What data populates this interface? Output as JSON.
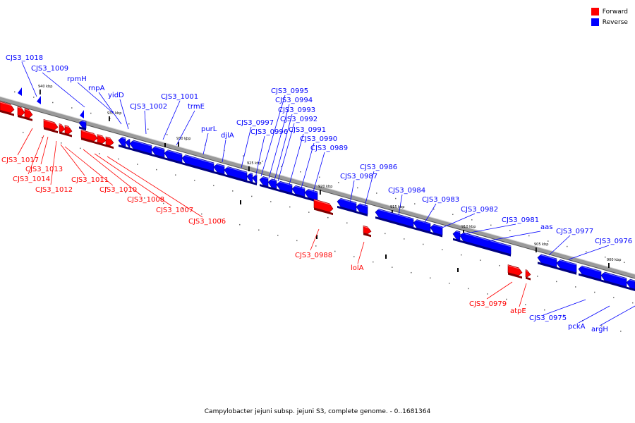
{
  "caption": "Campylobacter jejuni subsp. jejuni S3, complete genome. - 0..1681364",
  "legend": [
    {
      "label": "Forward",
      "color": "#ff0000"
    },
    {
      "label": "Reverse",
      "color": "#0000ff"
    }
  ],
  "colors": {
    "forward": "#ff0000",
    "reverse": "#0000ff",
    "backbone": "#888888"
  },
  "ticks": [
    {
      "label": "940 kbp"
    },
    {
      "label": "935 kbp"
    },
    {
      "label": "930 kbp"
    },
    {
      "label": "925 kbp"
    },
    {
      "label": "920 kbp"
    },
    {
      "label": "915 kbp"
    },
    {
      "label": "910 kbp"
    },
    {
      "label": "905 kbp"
    },
    {
      "label": "900 kbp"
    }
  ],
  "genes": [
    {
      "name": "CJS3_1018",
      "strand": "reverse"
    },
    {
      "name": "CJS3_1009",
      "strand": "reverse"
    },
    {
      "name": "rpmH",
      "strand": "reverse"
    },
    {
      "name": "rnpA",
      "strand": "reverse"
    },
    {
      "name": "yidD",
      "strand": "reverse"
    },
    {
      "name": "CJS3_1002",
      "strand": "reverse"
    },
    {
      "name": "CJS3_1001",
      "strand": "reverse"
    },
    {
      "name": "trmE",
      "strand": "reverse"
    },
    {
      "name": "purL",
      "strand": "reverse"
    },
    {
      "name": "djlA",
      "strand": "reverse"
    },
    {
      "name": "CJS3_0997",
      "strand": "reverse"
    },
    {
      "name": "CJS3_0996",
      "strand": "reverse"
    },
    {
      "name": "CJS3_0995",
      "strand": "reverse"
    },
    {
      "name": "CJS3_0994",
      "strand": "reverse"
    },
    {
      "name": "CJS3_0993",
      "strand": "reverse"
    },
    {
      "name": "CJS3_0992",
      "strand": "reverse"
    },
    {
      "name": "CJS3_0991",
      "strand": "reverse"
    },
    {
      "name": "CJS3_0990",
      "strand": "reverse"
    },
    {
      "name": "CJS3_0989",
      "strand": "reverse"
    },
    {
      "name": "CJS3_0986",
      "strand": "reverse"
    },
    {
      "name": "CJS3_0987",
      "strand": "reverse"
    },
    {
      "name": "CJS3_0984",
      "strand": "reverse"
    },
    {
      "name": "CJS3_0983",
      "strand": "reverse"
    },
    {
      "name": "CJS3_0982",
      "strand": "reverse"
    },
    {
      "name": "CJS3_0981",
      "strand": "reverse"
    },
    {
      "name": "aas",
      "strand": "reverse"
    },
    {
      "name": "CJS3_0977",
      "strand": "reverse"
    },
    {
      "name": "CJS3_0976",
      "strand": "reverse"
    },
    {
      "name": "CJS3_0975",
      "strand": "reverse"
    },
    {
      "name": "pckA",
      "strand": "reverse"
    },
    {
      "name": "argH",
      "strand": "reverse"
    },
    {
      "name": "CJS3_1017",
      "strand": "forward"
    },
    {
      "name": "CJS3_1013",
      "strand": "forward"
    },
    {
      "name": "CJS3_1014",
      "strand": "forward"
    },
    {
      "name": "CJS3_1012",
      "strand": "forward"
    },
    {
      "name": "CJS3_1011",
      "strand": "forward"
    },
    {
      "name": "CJS3_1010",
      "strand": "forward"
    },
    {
      "name": "CJS3_1008",
      "strand": "forward"
    },
    {
      "name": "CJS3_1007",
      "strand": "forward"
    },
    {
      "name": "CJS3_1006",
      "strand": "forward"
    },
    {
      "name": "CJS3_0988",
      "strand": "forward"
    },
    {
      "name": "lolA",
      "strand": "forward"
    },
    {
      "name": "CJS3_0979",
      "strand": "forward"
    },
    {
      "name": "atpE",
      "strand": "forward"
    }
  ]
}
